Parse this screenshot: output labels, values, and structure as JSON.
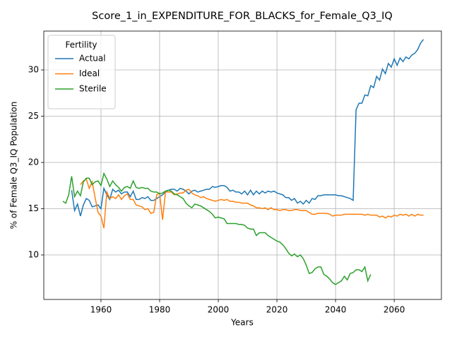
{
  "chart_data": {
    "type": "line",
    "title": "Score_1_in_EXPENDITURE_FOR_BLACKS_for_Female_Q3_IQ",
    "x_label": "Years",
    "y_label": "% of Female Q3_IQ Population",
    "legend_title": "Fertility",
    "legend": "upper left",
    "grid": true,
    "xlim": [
      1940.5,
      2076.1
    ],
    "ylim": [
      5.19,
      34.2
    ],
    "xticks": [
      1960,
      1980,
      2000,
      2020,
      2040,
      2060
    ],
    "yticks": [
      10,
      15,
      20,
      25,
      30
    ],
    "x": [
      1947,
      1948,
      1949,
      1950,
      1951,
      1952,
      1953,
      1954,
      1955,
      1956,
      1957,
      1958,
      1959,
      1960,
      1961,
      1962,
      1963,
      1964,
      1965,
      1966,
      1967,
      1968,
      1969,
      1970,
      1971,
      1972,
      1973,
      1974,
      1975,
      1976,
      1977,
      1978,
      1979,
      1980,
      1981,
      1982,
      1983,
      1984,
      1985,
      1986,
      1987,
      1988,
      1989,
      1990,
      1991,
      1992,
      1993,
      1994,
      1995,
      1996,
      1997,
      1998,
      1999,
      2000,
      2001,
      2002,
      2003,
      2004,
      2005,
      2006,
      2007,
      2008,
      2009,
      2010,
      2011,
      2012,
      2013,
      2014,
      2015,
      2016,
      2017,
      2018,
      2019,
      2020,
      2021,
      2022,
      2023,
      2024,
      2025,
      2026,
      2027,
      2028,
      2029,
      2030,
      2031,
      2032,
      2033,
      2034,
      2035,
      2036,
      2037,
      2038,
      2039,
      2040,
      2041,
      2042,
      2043,
      2044,
      2045,
      2046,
      2047,
      2048,
      2049,
      2050,
      2051,
      2052,
      2053,
      2054,
      2055,
      2056,
      2057,
      2058,
      2059,
      2060,
      2061,
      2062,
      2063,
      2064,
      2065,
      2066,
      2067,
      2068,
      2069,
      2070
    ],
    "series": [
      {
        "name": "Actual",
        "color": "#1f77b4",
        "values": [
          null,
          null,
          null,
          17.0,
          14.8,
          15.5,
          14.2,
          15.4,
          16.1,
          15.9,
          15.2,
          15.3,
          15.4,
          15.0,
          17.2,
          16.5,
          16.0,
          17.1,
          16.8,
          17.0,
          16.6,
          16.8,
          16.8,
          16.3,
          16.9,
          16.0,
          16.0,
          16.2,
          16.1,
          16.3,
          15.9,
          15.9,
          16.1,
          16.3,
          16.5,
          16.8,
          17.0,
          17.1,
          17.1,
          16.9,
          17.2,
          17.1,
          16.9,
          16.6,
          16.9,
          17.0,
          16.8,
          16.9,
          17.0,
          17.1,
          17.1,
          17.4,
          17.3,
          17.4,
          17.5,
          17.5,
          17.3,
          16.9,
          17.0,
          16.8,
          16.8,
          16.6,
          16.9,
          16.5,
          17.0,
          16.5,
          16.9,
          16.6,
          16.9,
          16.7,
          16.9,
          16.8,
          16.9,
          16.7,
          16.6,
          16.5,
          16.2,
          16.2,
          15.9,
          16.1,
          15.6,
          15.8,
          15.5,
          15.9,
          15.6,
          16.1,
          16.0,
          16.4,
          16.4,
          16.5,
          16.5,
          16.5,
          16.5,
          16.5,
          16.4,
          16.4,
          16.3,
          16.2,
          16.1,
          15.9,
          25.7,
          26.4,
          26.4,
          27.3,
          27.2,
          28.3,
          28.1,
          29.3,
          28.9,
          30.1,
          29.6,
          30.7,
          30.3,
          31.2,
          30.5,
          31.3,
          30.9,
          31.4,
          31.2,
          31.6,
          31.8,
          32.2,
          32.9,
          33.3
        ]
      },
      {
        "name": "Ideal",
        "color": "#ff7f0e",
        "values": [
          null,
          null,
          null,
          null,
          null,
          null,
          17.6,
          18.0,
          18.2,
          17.2,
          17.9,
          16.2,
          14.6,
          14.2,
          12.9,
          16.8,
          16.1,
          16.3,
          16.1,
          16.5,
          16.0,
          16.4,
          16.6,
          16.0,
          16.0,
          15.4,
          15.3,
          15.2,
          14.9,
          15.0,
          14.5,
          14.6,
          16.5,
          16.7,
          13.8,
          16.8,
          16.8,
          16.8,
          16.5,
          16.6,
          16.7,
          16.7,
          17.0,
          17.1,
          16.7,
          16.5,
          16.4,
          16.2,
          16.3,
          16.1,
          16.0,
          15.9,
          15.8,
          15.9,
          16.0,
          15.9,
          16.0,
          15.8,
          15.8,
          15.7,
          15.7,
          15.6,
          15.6,
          15.6,
          15.4,
          15.3,
          15.1,
          15.1,
          15.0,
          15.1,
          14.9,
          15.1,
          14.9,
          14.9,
          14.8,
          14.9,
          14.9,
          14.8,
          14.8,
          14.9,
          14.9,
          14.8,
          14.8,
          14.8,
          14.6,
          14.4,
          14.4,
          14.5,
          14.5,
          14.5,
          14.5,
          14.4,
          14.2,
          14.3,
          14.3,
          14.3,
          14.4,
          14.4,
          14.4,
          14.4,
          14.4,
          14.4,
          14.4,
          14.3,
          14.4,
          14.3,
          14.3,
          14.3,
          14.1,
          14.2,
          14.0,
          14.2,
          14.1,
          14.3,
          14.2,
          14.4,
          14.3,
          14.4,
          14.2,
          14.4,
          14.2,
          14.4,
          14.3,
          14.3
        ]
      },
      {
        "name": "Sterile",
        "color": "#2ca02c",
        "values": [
          15.8,
          15.6,
          16.5,
          18.5,
          16.3,
          16.9,
          16.4,
          17.9,
          18.3,
          18.3,
          17.6,
          17.9,
          18.0,
          17.5,
          18.8,
          18.2,
          17.4,
          18.0,
          17.6,
          17.3,
          16.9,
          17.3,
          17.4,
          17.2,
          18.0,
          17.3,
          17.2,
          17.3,
          17.2,
          17.2,
          16.9,
          16.8,
          16.8,
          16.6,
          16.7,
          16.9,
          17.0,
          16.9,
          16.6,
          16.5,
          16.3,
          16.1,
          15.6,
          15.3,
          15.1,
          15.5,
          15.4,
          15.3,
          15.1,
          14.9,
          14.7,
          14.4,
          14.0,
          14.1,
          14.0,
          13.9,
          13.4,
          13.4,
          13.4,
          13.4,
          13.3,
          13.3,
          13.2,
          12.9,
          12.8,
          12.8,
          12.1,
          12.4,
          12.4,
          12.4,
          12.1,
          11.9,
          11.7,
          11.5,
          11.4,
          11.1,
          10.7,
          10.2,
          9.9,
          10.1,
          9.8,
          10.0,
          9.6,
          8.9,
          8.0,
          8.1,
          8.5,
          8.7,
          8.7,
          7.9,
          7.7,
          7.4,
          7.0,
          6.8,
          7.0,
          7.2,
          7.7,
          7.3,
          8.0,
          8.1,
          8.4,
          8.4,
          8.2,
          8.7,
          7.2,
          7.9,
          null,
          null,
          null,
          null,
          null,
          null,
          null,
          null,
          null,
          null,
          null,
          null,
          null,
          null,
          null,
          null,
          null,
          null
        ]
      }
    ]
  }
}
